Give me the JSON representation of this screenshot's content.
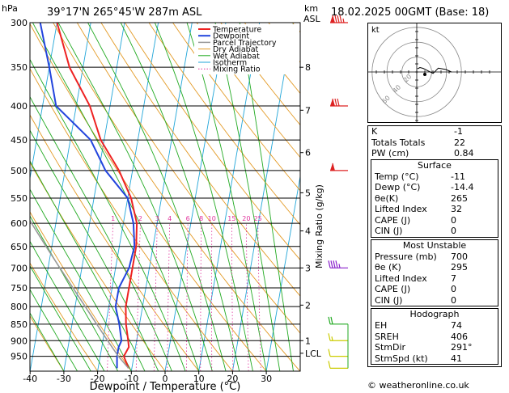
{
  "header": {
    "units_hpa": "hPa",
    "location": "39°17'N  265°45'W  287m  ASL",
    "units_km": "km",
    "units_asl": "ASL",
    "datetime": "18.02.2025  00GMT  (Base: 18)"
  },
  "chart_data": {
    "type": "line",
    "subtype": "skew-T log-P",
    "xlabel": "Dewpoint / Temperature (°C)",
    "ylabel_right": "Mixing Ratio (g/kg)",
    "x_ticks": [
      -40,
      -30,
      -20,
      -10,
      0,
      10,
      20,
      30
    ],
    "p_ticks": [
      300,
      350,
      400,
      450,
      500,
      550,
      600,
      650,
      700,
      750,
      800,
      850,
      900,
      950
    ],
    "km_ticks": [
      {
        "km": "8",
        "p": 350
      },
      {
        "km": "7",
        "p": 406
      },
      {
        "km": "6",
        "p": 470
      },
      {
        "km": "5",
        "p": 540
      },
      {
        "km": "4",
        "p": 616
      },
      {
        "km": "3",
        "p": 700
      },
      {
        "km": "2",
        "p": 796
      },
      {
        "km": "1",
        "p": 900
      },
      {
        "km": "LCL",
        "p": 940
      }
    ],
    "mixing_ratio_labels": [
      "1",
      "2",
      "3",
      "4",
      "6",
      "8",
      "10",
      "15",
      "20",
      "25"
    ],
    "legend": [
      "Temperature",
      "Dewpoint",
      "Parcel Trajectory",
      "Dry Adiabat",
      "Wet Adiabat",
      "Isotherm",
      "Mixing Ratio"
    ],
    "colors": {
      "temperature": "#ee2222",
      "dewpoint": "#2244dd",
      "parcel": "#999999",
      "dry_adiabat": "#e39a25",
      "wet_adiabat": "#22aa22",
      "isotherm": "#22a6d8",
      "mixing_ratio": "#e0309a"
    },
    "series": [
      {
        "name": "Temperature",
        "points": [
          [
            990,
            -11
          ],
          [
            950,
            -13
          ],
          [
            920,
            -12
          ],
          [
            900,
            -12.5
          ],
          [
            850,
            -14
          ],
          [
            800,
            -15
          ],
          [
            750,
            -15
          ],
          [
            700,
            -15
          ],
          [
            650,
            -15
          ],
          [
            600,
            -16
          ],
          [
            550,
            -19
          ],
          [
            500,
            -24
          ],
          [
            450,
            -31
          ],
          [
            400,
            -36
          ],
          [
            350,
            -44
          ],
          [
            300,
            -50
          ]
        ]
      },
      {
        "name": "Dewpoint",
        "points": [
          [
            990,
            -14.4
          ],
          [
            950,
            -15
          ],
          [
            920,
            -15
          ],
          [
            900,
            -14.5
          ],
          [
            850,
            -16
          ],
          [
            800,
            -18
          ],
          [
            750,
            -18
          ],
          [
            700,
            -16
          ],
          [
            650,
            -15.5
          ],
          [
            600,
            -17
          ],
          [
            550,
            -20
          ],
          [
            500,
            -28
          ],
          [
            450,
            -34
          ],
          [
            400,
            -46
          ],
          [
            350,
            -50
          ],
          [
            300,
            -55
          ]
        ]
      },
      {
        "name": "Parcel Trajectory",
        "points": [
          [
            990,
            -11
          ],
          [
            950,
            -14.6
          ],
          [
            900,
            -18.6
          ],
          [
            850,
            -22.7
          ],
          [
            800,
            -27
          ],
          [
            750,
            -31.6
          ],
          [
            700,
            -36.5
          ],
          [
            650,
            -41.7
          ],
          [
            600,
            -47.2
          ],
          [
            550,
            -53
          ],
          [
            500,
            -59
          ],
          [
            450,
            -66
          ],
          [
            400,
            -73
          ]
        ]
      }
    ],
    "winds": [
      {
        "p": 300,
        "dir": 270,
        "kt": 95
      },
      {
        "p": 400,
        "dir": 265,
        "kt": 80
      },
      {
        "p": 500,
        "dir": 260,
        "kt": 60
      },
      {
        "p": 700,
        "dir": 275,
        "kt": 45
      },
      {
        "p": 850,
        "dir": 240,
        "kt": 20
      },
      {
        "p": 900,
        "dir": 215,
        "kt": 15
      },
      {
        "p": 950,
        "dir": 200,
        "kt": 10
      },
      {
        "p": 990,
        "dir": 190,
        "kt": 10
      }
    ]
  },
  "hodograph": {
    "label": "kt",
    "ring_labels": [
      "20",
      "40",
      "60"
    ]
  },
  "indices": {
    "rows": [
      {
        "label": "K",
        "value": "-1"
      },
      {
        "label": "Totals Totals",
        "value": "22"
      },
      {
        "label": "PW (cm)",
        "value": "0.84"
      }
    ]
  },
  "surface": {
    "title": "Surface",
    "rows": [
      {
        "label": "Temp (°C)",
        "value": "-11"
      },
      {
        "label": "Dewp (°C)",
        "value": "-14.4"
      },
      {
        "label": "θe(K)",
        "value": "265"
      },
      {
        "label": "Lifted Index",
        "value": "32"
      },
      {
        "label": "CAPE (J)",
        "value": "0"
      },
      {
        "label": "CIN (J)",
        "value": "0"
      }
    ]
  },
  "most_unstable": {
    "title": "Most Unstable",
    "rows": [
      {
        "label": "Pressure (mb)",
        "value": "700"
      },
      {
        "label": "θe (K)",
        "value": "295"
      },
      {
        "label": "Lifted Index",
        "value": "7"
      },
      {
        "label": "CAPE (J)",
        "value": "0"
      },
      {
        "label": "CIN (J)",
        "value": "0"
      }
    ]
  },
  "hodograph_table": {
    "title": "Hodograph",
    "rows": [
      {
        "label": "EH",
        "value": "74"
      },
      {
        "label": "SREH",
        "value": "406"
      },
      {
        "label": "StmDir",
        "value": "291°"
      },
      {
        "label": "StmSpd (kt)",
        "value": "41"
      }
    ]
  },
  "copyright": "© weatheronline.co.uk"
}
